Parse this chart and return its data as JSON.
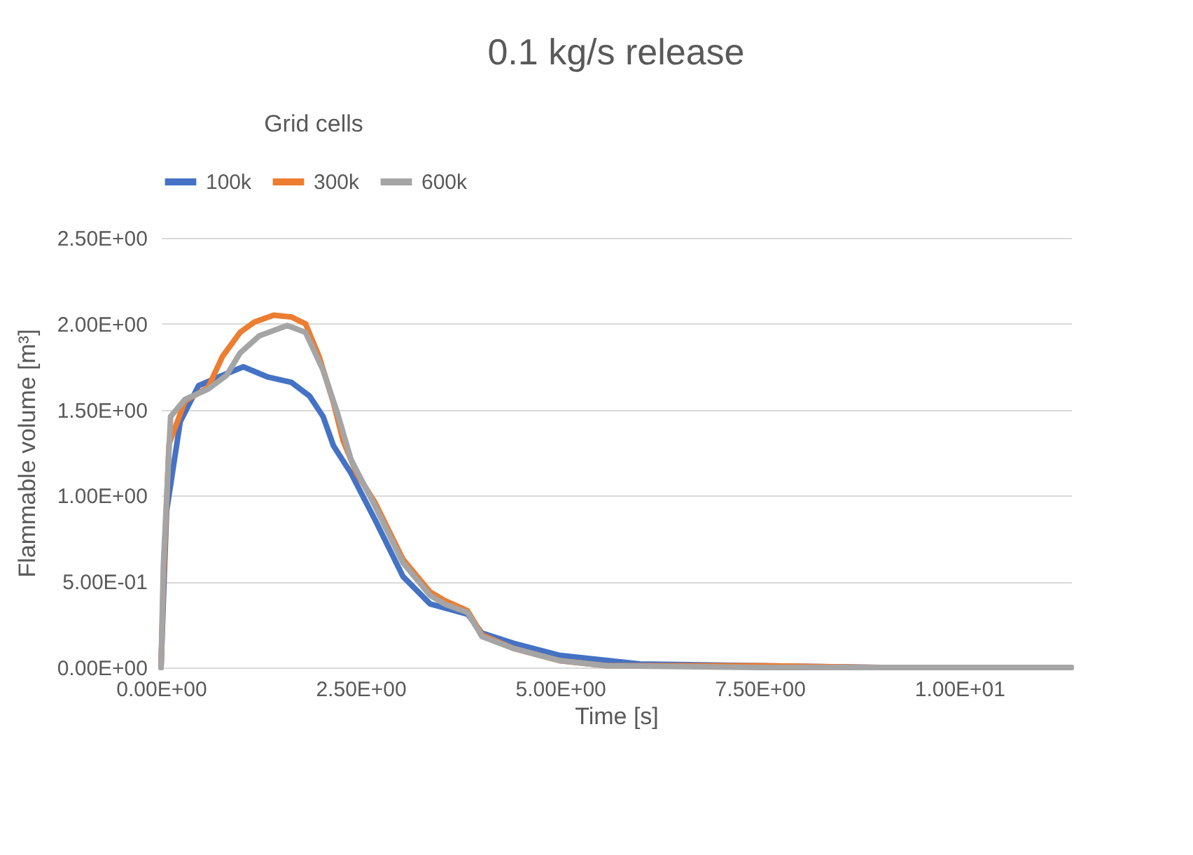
{
  "chart_data": {
    "type": "line",
    "title": "0.1 kg/s release",
    "xlabel": "Time [s]",
    "ylabel": "Flammable volume [m³]",
    "legend_title": "Grid cells",
    "legend": "top",
    "grid": "y",
    "marker": "none",
    "line_style": "solid",
    "xlim": [
      0,
      11.4
    ],
    "xticks": [
      {
        "value": 0,
        "label": "0.00E+00"
      },
      {
        "value": 2.5,
        "label": "2.50E+00"
      },
      {
        "value": 5,
        "label": "5.00E+00"
      },
      {
        "value": 7.5,
        "label": "7.50E+00"
      },
      {
        "value": 10,
        "label": "1.00E+01"
      }
    ],
    "ylim": [
      0,
      2.5
    ],
    "yticks": [
      {
        "value": 0,
        "label": "0.00E+00"
      },
      {
        "value": 0.5,
        "label": "5.00E-01"
      },
      {
        "value": 1,
        "label": "1.00E+00"
      },
      {
        "value": 1.5,
        "label": "1.50E+00"
      },
      {
        "value": 2,
        "label": "2.00E+00"
      },
      {
        "value": 2.5,
        "label": "2.50E+00"
      }
    ],
    "series": [
      {
        "name": "100k",
        "color": "#4472c4",
        "x": [
          0,
          0.03,
          0.07,
          0.24,
          0.47,
          0.77,
          1.03,
          1.34,
          1.63,
          1.86,
          2.03,
          2.16,
          2.38,
          2.68,
          3.03,
          3.37,
          3.84,
          4.02,
          4.42,
          5.0,
          6.0,
          7.5,
          9,
          11.4
        ],
        "values": [
          0,
          0.4,
          0.91,
          1.43,
          1.64,
          1.7,
          1.75,
          1.69,
          1.66,
          1.58,
          1.46,
          1.29,
          1.13,
          0.86,
          0.53,
          0.37,
          0.31,
          0.2,
          0.14,
          0.07,
          0.02,
          0.01,
          0,
          0
        ]
      },
      {
        "name": "300k",
        "color": "#ed7d31",
        "x": [
          0,
          0.03,
          0.1,
          0.3,
          0.59,
          0.77,
          0.99,
          1.17,
          1.41,
          1.63,
          1.81,
          1.98,
          2.16,
          2.28,
          2.45,
          2.68,
          3.03,
          3.37,
          3.55,
          3.84,
          4.02,
          4.42,
          4.99,
          5.58,
          7.5,
          9,
          11.4
        ],
        "values": [
          0,
          0.5,
          1.3,
          1.55,
          1.63,
          1.81,
          1.95,
          2.01,
          2.05,
          2.04,
          2.0,
          1.81,
          1.54,
          1.32,
          1.13,
          0.96,
          0.63,
          0.44,
          0.39,
          0.33,
          0.19,
          0.11,
          0.04,
          0.01,
          0.01,
          0,
          0
        ]
      },
      {
        "name": "600k",
        "color": "#a5a5a5",
        "x": [
          0,
          0.03,
          0.12,
          0.3,
          0.59,
          0.82,
          0.99,
          1.23,
          1.58,
          1.81,
          2.03,
          2.21,
          2.38,
          2.68,
          3.03,
          3.37,
          3.55,
          3.84,
          4.02,
          4.42,
          4.99,
          5.58,
          7.5,
          9,
          11.4
        ],
        "values": [
          0,
          0.6,
          1.46,
          1.56,
          1.62,
          1.7,
          1.83,
          1.93,
          1.99,
          1.95,
          1.73,
          1.48,
          1.21,
          0.94,
          0.61,
          0.42,
          0.37,
          0.32,
          0.18,
          0.11,
          0.04,
          0.01,
          0,
          0,
          0
        ]
      }
    ]
  }
}
